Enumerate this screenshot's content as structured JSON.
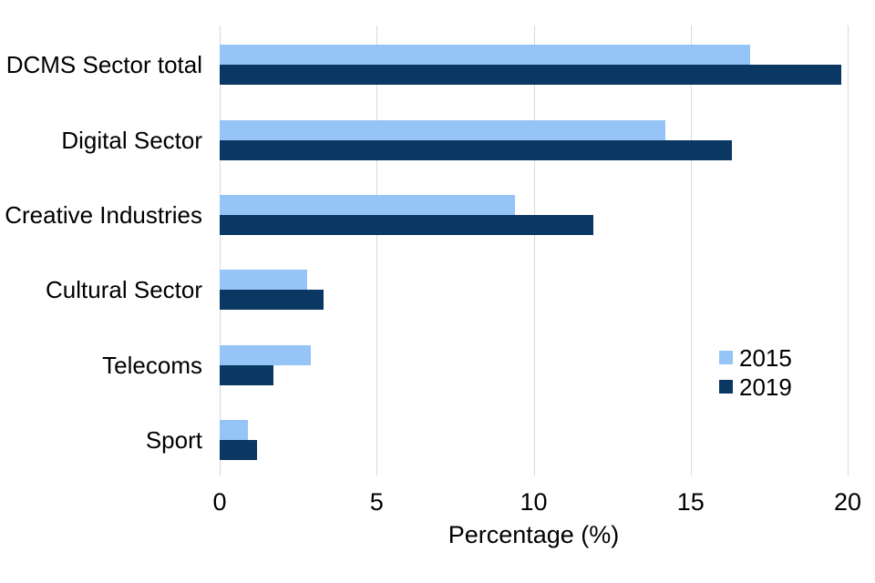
{
  "chart_data": {
    "type": "bar",
    "orientation": "horizontal",
    "title": "",
    "categories": [
      "DCMS Sector total",
      "Digital Sector",
      "Creative Industries",
      "Cultural Sector",
      "Telecoms",
      "Sport"
    ],
    "series": [
      {
        "name": "2015",
        "color": "#95C5F6",
        "values": [
          16.9,
          14.2,
          9.4,
          2.8,
          2.9,
          0.9
        ]
      },
      {
        "name": "2019",
        "color": "#0B3763",
        "values": [
          19.8,
          16.3,
          11.9,
          3.3,
          1.7,
          1.2
        ]
      }
    ],
    "xlabel": "Percentage (%)",
    "ylabel": "",
    "xlim": [
      0,
      20
    ],
    "xticks": [
      0,
      5,
      10,
      15,
      20
    ],
    "grid": true,
    "gridline_color": "#d9d9d9",
    "legend": {
      "position": "middle-right",
      "entries": [
        "2015",
        "2019"
      ]
    }
  }
}
